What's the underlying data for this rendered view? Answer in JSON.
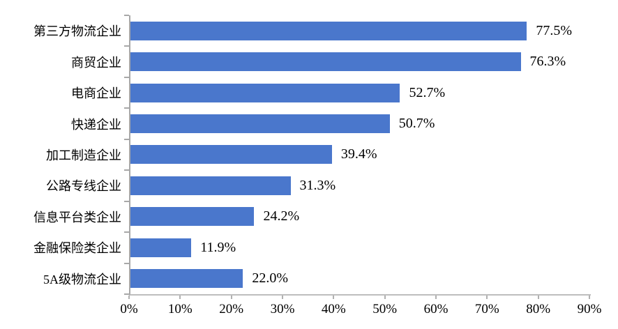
{
  "chart_data": {
    "type": "bar",
    "orientation": "horizontal",
    "title": "",
    "xlabel": "",
    "ylabel": "",
    "categories": [
      "第三方物流企业",
      "商贸企业",
      "电商企业",
      "快递企业",
      "加工制造企业",
      "公路专线企业",
      "信息平台类企业",
      "金融保险类企业",
      "5A级物流企业"
    ],
    "values": [
      77.5,
      76.3,
      52.7,
      50.7,
      39.4,
      31.3,
      24.2,
      11.9,
      22.0
    ],
    "value_labels": [
      "77.5%",
      "76.3%",
      "52.7%",
      "50.7%",
      "39.4%",
      "31.3%",
      "24.2%",
      "11.9%",
      "22.0%"
    ],
    "xlim": [
      0,
      90
    ],
    "x_ticks": [
      "0%",
      "10%",
      "20%",
      "30%",
      "40%",
      "50%",
      "60%",
      "70%",
      "80%",
      "90%"
    ],
    "grid": false,
    "legend": false,
    "bar_color": "#4a77cc",
    "axis_color": "#a8a8a8",
    "tick_color": "#b0b0b0",
    "text_color": "#000000"
  }
}
